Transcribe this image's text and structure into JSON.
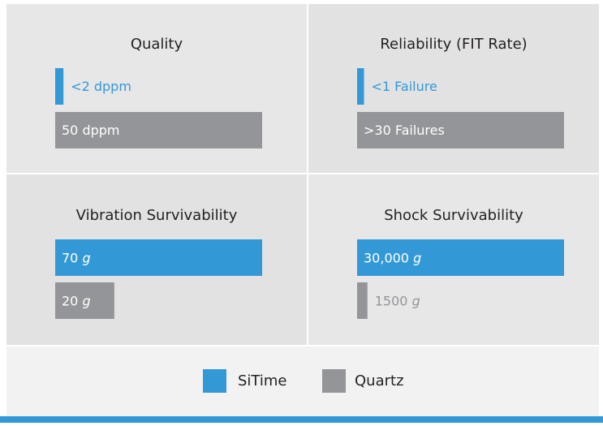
{
  "legend": [
    {
      "name": "SiTime",
      "color": "#3399d6"
    },
    {
      "name": "Quartz",
      "color": "#939598"
    }
  ],
  "chart_data": [
    {
      "type": "bar",
      "title": "Quality",
      "values": [
        2,
        50
      ],
      "value_labels": [
        "<2 dppm",
        "50 dppm"
      ],
      "xlim": [
        0,
        50
      ],
      "unit_italic": false
    },
    {
      "type": "bar",
      "title": "Reliability (FIT Rate)",
      "values": [
        1,
        30
      ],
      "value_labels": [
        "<1 Failure",
        ">30 Failures"
      ],
      "xlim": [
        0,
        30
      ],
      "unit_italic": false
    },
    {
      "type": "bar",
      "title": "Vibration Survivability",
      "values": [
        70,
        20
      ],
      "value_labels": [
        "70 g",
        "20 g"
      ],
      "xlim": [
        0,
        70
      ],
      "unit_italic": true
    },
    {
      "type": "bar",
      "title": "Shock Survivability",
      "values": [
        30000,
        1500
      ],
      "value_labels": [
        "30,000 g",
        "1500 g"
      ],
      "xlim": [
        0,
        30000
      ],
      "unit_italic": true
    }
  ]
}
